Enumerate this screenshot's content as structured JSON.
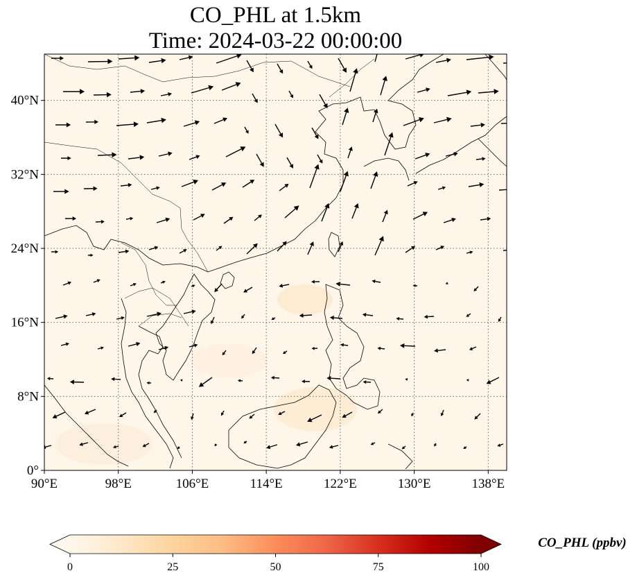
{
  "title": {
    "line1": "CO_PHL at 1.5km",
    "line2": "Time: 2024-03-22 00:00:00"
  },
  "map": {
    "projection": "PlateCarree",
    "lon_range": [
      90,
      140
    ],
    "lat_range": [
      0,
      45
    ],
    "gridlines": "dotted",
    "x_ticks": [
      {
        "value": 90,
        "label": "90°E"
      },
      {
        "value": 98,
        "label": "98°E"
      },
      {
        "value": 106,
        "label": "106°E"
      },
      {
        "value": 114,
        "label": "114°E"
      },
      {
        "value": 122,
        "label": "122°E"
      },
      {
        "value": 130,
        "label": "130°E"
      },
      {
        "value": 138,
        "label": "138°E"
      }
    ],
    "y_ticks": [
      {
        "value": 0,
        "label": "0°"
      },
      {
        "value": 8,
        "label": "8°N"
      },
      {
        "value": 16,
        "label": "16°N"
      },
      {
        "value": 24,
        "label": "24°N"
      },
      {
        "value": 32,
        "label": "32°N"
      },
      {
        "value": 40,
        "label": "40°N"
      }
    ],
    "field_background_color": "#fff6ea",
    "wind_arrow_color": "#000000"
  },
  "colorbar": {
    "label": "CO_PHL (ppbv)",
    "min": 0,
    "max": 100,
    "extend": "both",
    "colormap": "OrRd",
    "ticks": [
      {
        "value": 0,
        "label": "0"
      },
      {
        "value": 25,
        "label": "25"
      },
      {
        "value": 50,
        "label": "50"
      },
      {
        "value": 75,
        "label": "75"
      },
      {
        "value": 100,
        "label": "100"
      }
    ],
    "stops": [
      "#fff7ec",
      "#fee8c8",
      "#fdd49e",
      "#fdbb84",
      "#fc8d59",
      "#ef6548",
      "#d7301f",
      "#b30000",
      "#7f0000"
    ]
  }
}
